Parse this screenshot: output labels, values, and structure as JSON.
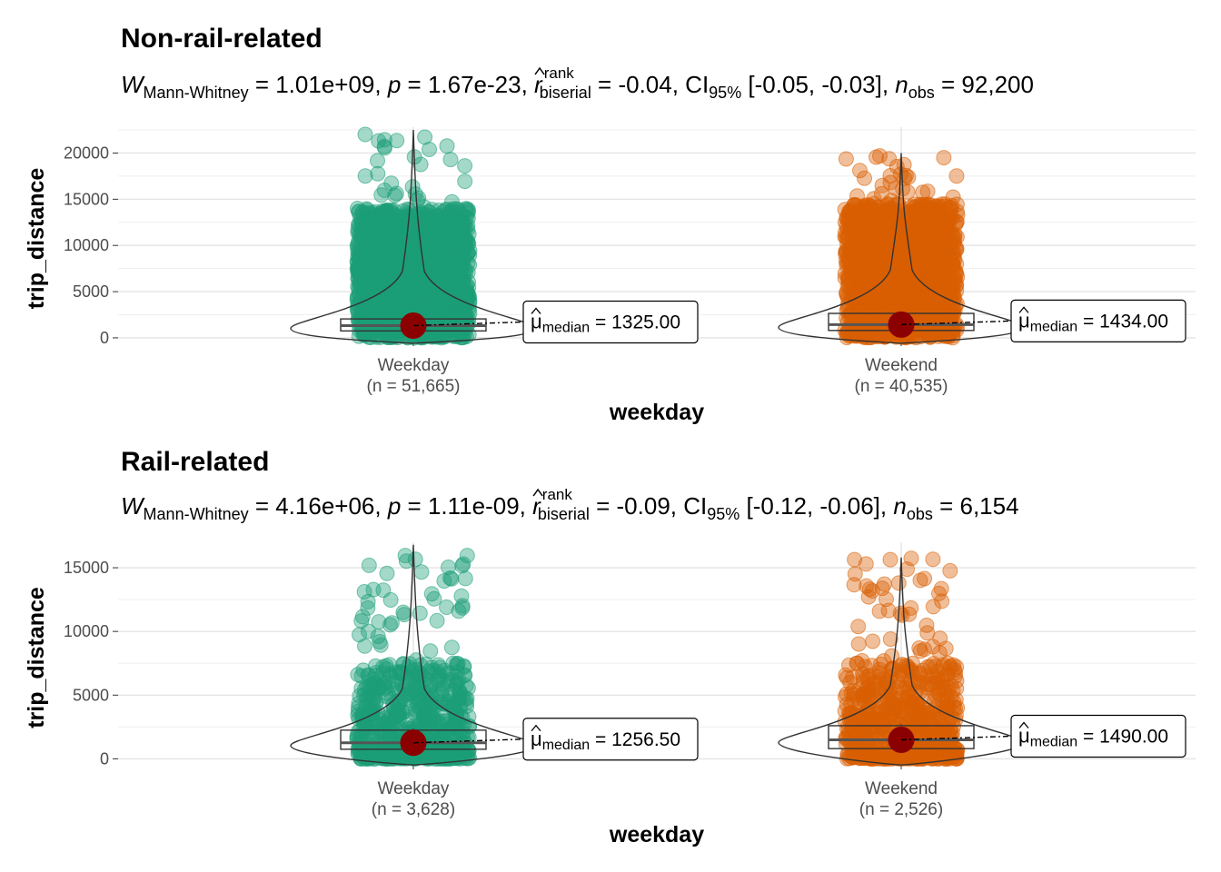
{
  "chart_data": [
    {
      "type": "violin-box-scatter",
      "title": "Non-rail-related",
      "subtitle": {
        "stat_symbol": "W",
        "stat_sub": "Mann-Whitney",
        "stat_value": "1.01e+09",
        "p_symbol": "p",
        "p_value": "1.67e-23",
        "effect_symbol": "r",
        "effect_sup": "rank",
        "effect_sub": "biserial",
        "effect_value": "-0.04",
        "ci_symbol": "CI",
        "ci_sub": "95%",
        "ci_value": "[-0.05, -0.03]",
        "n_symbol": "n",
        "n_sub": "obs",
        "n_value": "92,200"
      },
      "xlabel": "weekday",
      "ylabel": "trip_distance",
      "ylim": [
        -300,
        22800
      ],
      "yticks": [
        0,
        5000,
        10000,
        15000,
        20000
      ],
      "categories": [
        {
          "name": "Weekday",
          "n_label": "(n = 51,665)",
          "color": "#1b9e77",
          "median": 1325,
          "q1": 750,
          "q3": 2050,
          "max": 22500,
          "dense_max": 14000,
          "sparse_max": 22500,
          "median_label_sub": "median",
          "median_label_value": "1325.00"
        },
        {
          "name": "Weekend",
          "n_label": "(n = 40,535)",
          "color": "#d95f02",
          "median": 1434,
          "q1": 800,
          "q3": 2650,
          "max": 20000,
          "dense_max": 14500,
          "sparse_max": 20000,
          "median_label_sub": "median",
          "median_label_value": "1434.00"
        }
      ]
    },
    {
      "type": "violin-box-scatter",
      "title": "Rail-related",
      "subtitle": {
        "stat_symbol": "W",
        "stat_sub": "Mann-Whitney",
        "stat_value": "4.16e+06",
        "p_symbol": "p",
        "p_value": "1.11e-09",
        "effect_symbol": "r",
        "effect_sup": "rank",
        "effect_sub": "biserial",
        "effect_value": "-0.09",
        "ci_symbol": "CI",
        "ci_sub": "95%",
        "ci_value": "[-0.12, -0.06]",
        "n_symbol": "n",
        "n_sub": "obs",
        "n_value": "6,154"
      },
      "xlabel": "weekday",
      "ylabel": "trip_distance",
      "ylim": [
        -400,
        17000
      ],
      "yticks": [
        0,
        5000,
        10000,
        15000
      ],
      "categories": [
        {
          "name": "Weekday",
          "n_label": "(n = 3,628)",
          "color": "#1b9e77",
          "median": 1256.5,
          "q1": 750,
          "q3": 2250,
          "max": 16800,
          "dense_max": 7500,
          "sparse_max": 16800,
          "median_label_sub": "median",
          "median_label_value": "1256.50"
        },
        {
          "name": "Weekend",
          "n_label": "(n = 2,526)",
          "color": "#d95f02",
          "median": 1490,
          "q1": 800,
          "q3": 2600,
          "max": 15800,
          "dense_max": 7500,
          "sparse_max": 15800,
          "median_label_sub": "median",
          "median_label_value": "1490.00"
        }
      ]
    }
  ]
}
